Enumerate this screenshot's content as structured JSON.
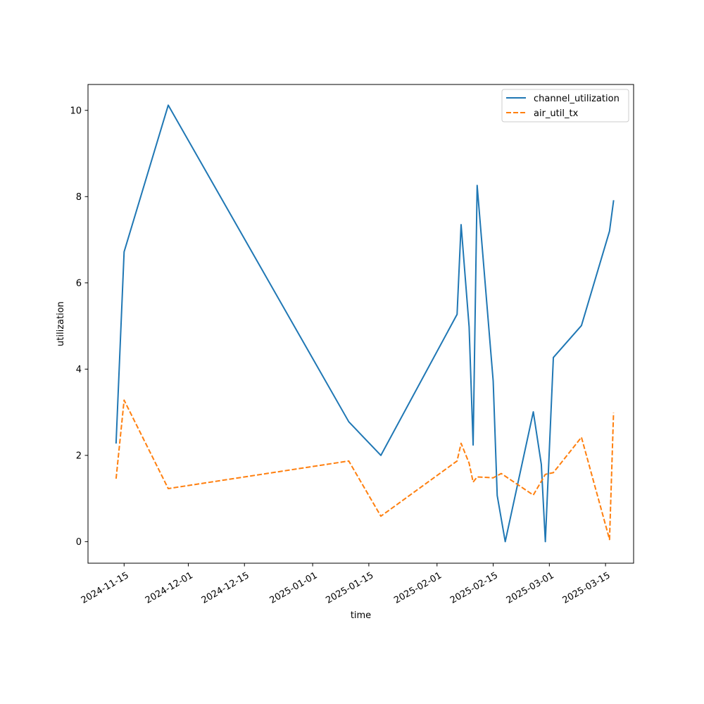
{
  "chart_data": {
    "type": "line",
    "title": "",
    "xlabel": "time",
    "ylabel": "utilization",
    "x_axis_type": "date",
    "xlim": [
      "2024-11-06",
      "2025-03-22"
    ],
    "ylim": [
      -0.5,
      10.6
    ],
    "x_ticks": [
      "2024-11-15",
      "2024-12-01",
      "2024-12-15",
      "2025-01-01",
      "2025-01-15",
      "2025-02-01",
      "2025-02-15",
      "2025-03-01",
      "2025-03-15"
    ],
    "y_ticks": [
      0,
      2,
      4,
      6,
      8,
      10
    ],
    "grid": false,
    "legend_position": "top-right",
    "series": [
      {
        "name": "channel_utilization",
        "color": "#1f77b4",
        "dash": "solid",
        "points": [
          [
            "2024-11-13",
            2.29
          ],
          [
            "2024-11-15",
            6.72
          ],
          [
            "2024-11-26",
            10.12
          ],
          [
            "2025-01-10",
            2.78
          ],
          [
            "2025-01-18",
            2.0
          ],
          [
            "2025-02-06",
            5.27
          ],
          [
            "2025-02-07",
            7.35
          ],
          [
            "2025-02-09",
            4.98
          ],
          [
            "2025-02-10",
            2.24
          ],
          [
            "2025-02-11",
            8.26
          ],
          [
            "2025-02-15",
            3.72
          ],
          [
            "2025-02-16",
            1.07
          ],
          [
            "2025-02-18",
            0.0
          ],
          [
            "2025-02-25",
            3.01
          ],
          [
            "2025-02-27",
            1.79
          ],
          [
            "2025-02-28",
            0.0
          ],
          [
            "2025-03-02",
            4.27
          ],
          [
            "2025-03-09",
            5.01
          ],
          [
            "2025-03-16",
            7.2
          ],
          [
            "2025-03-17",
            7.9
          ]
        ]
      },
      {
        "name": "air_util_tx",
        "color": "#ff7f0e",
        "dash": "dashed",
        "points": [
          [
            "2024-11-13",
            1.46
          ],
          [
            "2024-11-15",
            3.28
          ],
          [
            "2024-11-26",
            1.23
          ],
          [
            "2025-01-10",
            1.87
          ],
          [
            "2025-01-18",
            0.59
          ],
          [
            "2025-02-06",
            1.87
          ],
          [
            "2025-02-07",
            2.28
          ],
          [
            "2025-02-09",
            1.82
          ],
          [
            "2025-02-10",
            1.38
          ],
          [
            "2025-02-11",
            1.5
          ],
          [
            "2025-02-15",
            1.48
          ],
          [
            "2025-02-17",
            1.58
          ],
          [
            "2025-02-25",
            1.08
          ],
          [
            "2025-02-28",
            1.56
          ],
          [
            "2025-03-02",
            1.6
          ],
          [
            "2025-03-09",
            2.42
          ],
          [
            "2025-03-16",
            0.05
          ],
          [
            "2025-03-17",
            2.99
          ]
        ]
      }
    ]
  }
}
